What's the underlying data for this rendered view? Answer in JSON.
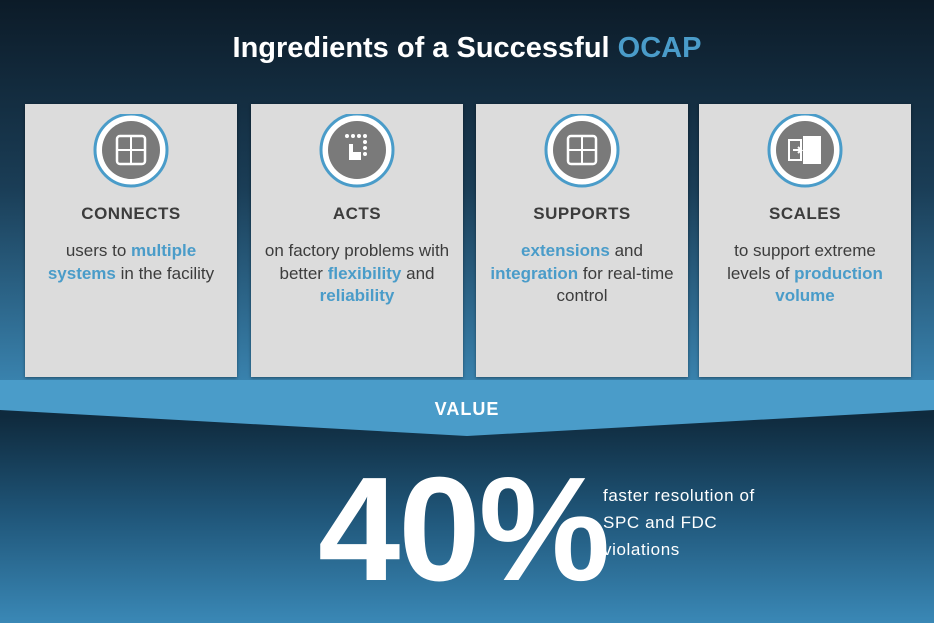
{
  "title": [
    {
      "text": "Ingredients of a Successful ",
      "highlight": false
    },
    {
      "text": "OCAP",
      "highlight": true
    }
  ],
  "cards": [
    {
      "heading": "CONNECTS",
      "body": [
        {
          "text": "users to ",
          "highlight": false
        },
        {
          "text": "multiple systems",
          "highlight": true
        },
        {
          "text": " in the facility",
          "highlight": false
        }
      ]
    },
    {
      "heading": "ACTS",
      "body": [
        {
          "text": "on factory problems with better ",
          "highlight": false
        },
        {
          "text": "flexibility",
          "highlight": true
        },
        {
          "text": " and ",
          "highlight": false
        },
        {
          "text": "reliability",
          "highlight": true
        }
      ]
    },
    {
      "heading": "SUPPORTS",
      "body": [
        {
          "text": "extensions",
          "highlight": true
        },
        {
          "text": " and ",
          "highlight": false
        },
        {
          "text": "integration",
          "highlight": true
        },
        {
          "text": " for real-time control",
          "highlight": false
        }
      ]
    },
    {
      "heading": "SCALES",
      "body": [
        {
          "text": "to support extreme levels of ",
          "highlight": false
        },
        {
          "text": "production volume",
          "highlight": true
        }
      ]
    }
  ],
  "banner": "VALUE",
  "stat": {
    "value": "40%",
    "description": "faster resolution of SPC and FDC violations"
  }
}
